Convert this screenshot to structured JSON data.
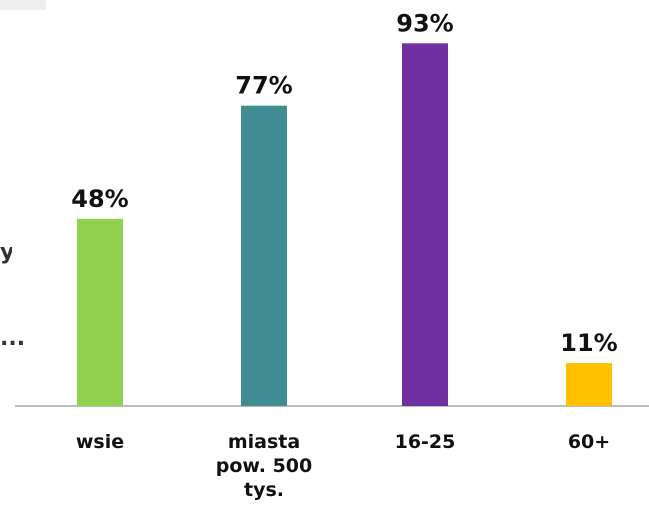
{
  "chart_data": {
    "type": "bar",
    "categories": [
      "wsie",
      "miasta pow. 500 tys.",
      "16-25",
      "60+"
    ],
    "values": [
      48,
      77,
      93,
      11
    ],
    "data_labels": [
      "48%",
      "77%",
      "93%",
      "11%"
    ],
    "colors": [
      "#92d050",
      "#3f8d93",
      "#7030a0",
      "#ffc000"
    ],
    "ylim": [
      0,
      100
    ],
    "grid": false,
    "legend": "none",
    "title": "",
    "xlabel": "",
    "ylabel": ""
  },
  "truncated_text": {
    "fragment_1": "y",
    "fragment_2": "..."
  }
}
